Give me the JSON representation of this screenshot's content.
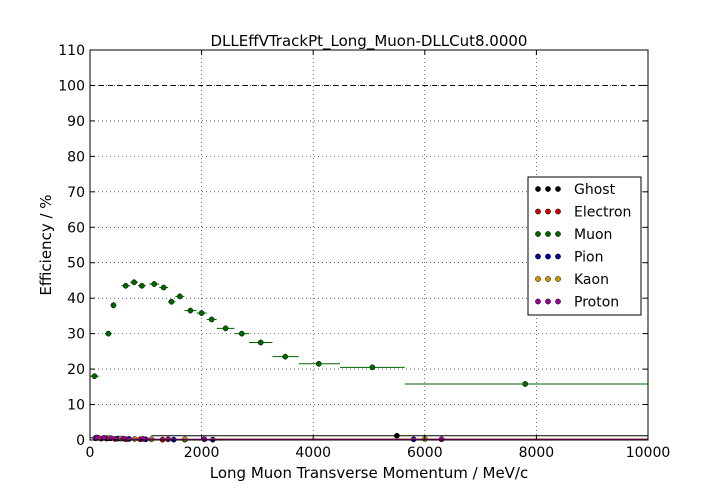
{
  "chart_data": {
    "type": "scatter",
    "title": "DLLEffVTrackPt_Long_Muon-DLLCut8.0000",
    "xlabel": "Long Muon Transverse Momentum / MeV/c",
    "ylabel": "Efficiency / %",
    "xlim": [
      0,
      10000
    ],
    "ylim": [
      0,
      110
    ],
    "xticks": [
      "0",
      "2000",
      "4000",
      "6000",
      "8000",
      "10000"
    ],
    "yticks": [
      "0",
      "10",
      "20",
      "30",
      "40",
      "50",
      "60",
      "70",
      "80",
      "90",
      "100",
      "110"
    ],
    "grid": true,
    "reference_line": 100,
    "legend_position": "right",
    "series": [
      {
        "name": "Ghost",
        "color": "#000000",
        "points": [
          {
            "x": 5500,
            "y": 1.2,
            "xlo": 1100,
            "xhi": 10000,
            "err": 0.3
          }
        ]
      },
      {
        "name": "Electron",
        "color": "#cc0000",
        "points": [
          {
            "x": 100,
            "y": 0.5,
            "xlo": 50,
            "xhi": 150,
            "err": 0.3
          },
          {
            "x": 200,
            "y": 0.4,
            "xlo": 150,
            "xhi": 250,
            "err": 0.3
          },
          {
            "x": 300,
            "y": 0.4,
            "xlo": 250,
            "xhi": 350,
            "err": 0.3
          },
          {
            "x": 450,
            "y": 0.3,
            "xlo": 350,
            "xhi": 550,
            "err": 0.3
          },
          {
            "x": 650,
            "y": 0.2,
            "xlo": 550,
            "xhi": 750,
            "err": 0.3
          },
          {
            "x": 900,
            "y": 0.2,
            "xlo": 750,
            "xhi": 1050,
            "err": 0.3
          },
          {
            "x": 1300,
            "y": 0.1,
            "xlo": 1050,
            "xhi": 1550,
            "err": 0.2
          },
          {
            "x": 1700,
            "y": 0.1,
            "xlo": 1550,
            "xhi": 1850,
            "err": 0.2
          }
        ]
      },
      {
        "name": "Muon",
        "color": "#006600",
        "points": [
          {
            "x": 80,
            "y": 18.0,
            "xlo": 0,
            "xhi": 160,
            "err": 0.7
          },
          {
            "x": 330,
            "y": 30.0,
            "xlo": 270,
            "xhi": 390,
            "err": 0.8
          },
          {
            "x": 420,
            "y": 38.0,
            "xlo": 390,
            "xhi": 470,
            "err": 0.9
          },
          {
            "x": 640,
            "y": 43.5,
            "xlo": 560,
            "xhi": 720,
            "err": 0.8
          },
          {
            "x": 790,
            "y": 44.5,
            "xlo": 720,
            "xhi": 860,
            "err": 0.8
          },
          {
            "x": 930,
            "y": 43.5,
            "xlo": 860,
            "xhi": 1000,
            "err": 0.8
          },
          {
            "x": 1150,
            "y": 44.0,
            "xlo": 1060,
            "xhi": 1240,
            "err": 0.8
          },
          {
            "x": 1320,
            "y": 43.0,
            "xlo": 1240,
            "xhi": 1400,
            "err": 0.8
          },
          {
            "x": 1460,
            "y": 39.0,
            "xlo": 1400,
            "xhi": 1530,
            "err": 0.8
          },
          {
            "x": 1610,
            "y": 40.5,
            "xlo": 1530,
            "xhi": 1690,
            "err": 0.8
          },
          {
            "x": 1800,
            "y": 36.5,
            "xlo": 1690,
            "xhi": 1910,
            "err": 0.8
          },
          {
            "x": 2000,
            "y": 35.8,
            "xlo": 1910,
            "xhi": 2090,
            "err": 0.8
          },
          {
            "x": 2180,
            "y": 34.0,
            "xlo": 2090,
            "xhi": 2270,
            "err": 0.8
          },
          {
            "x": 2430,
            "y": 31.5,
            "xlo": 2270,
            "xhi": 2590,
            "err": 0.8
          },
          {
            "x": 2720,
            "y": 30.0,
            "xlo": 2590,
            "xhi": 2850,
            "err": 0.8
          },
          {
            "x": 3060,
            "y": 27.5,
            "xlo": 2850,
            "xhi": 3270,
            "err": 0.8
          },
          {
            "x": 3500,
            "y": 23.5,
            "xlo": 3270,
            "xhi": 3740,
            "err": 0.8
          },
          {
            "x": 4100,
            "y": 21.5,
            "xlo": 3740,
            "xhi": 4480,
            "err": 0.8
          },
          {
            "x": 5060,
            "y": 20.5,
            "xlo": 4480,
            "xhi": 5640,
            "err": 0.8
          },
          {
            "x": 7800,
            "y": 15.8,
            "xlo": 5640,
            "xhi": 10000,
            "err": 0.8
          }
        ]
      },
      {
        "name": "Pion",
        "color": "#000099",
        "points": [
          {
            "x": 100,
            "y": 0.6,
            "xlo": 0,
            "xhi": 200,
            "err": 0.3
          },
          {
            "x": 300,
            "y": 0.5,
            "xlo": 200,
            "xhi": 400,
            "err": 0.3
          },
          {
            "x": 500,
            "y": 0.4,
            "xlo": 400,
            "xhi": 600,
            "err": 0.3
          },
          {
            "x": 700,
            "y": 0.3,
            "xlo": 600,
            "xhi": 800,
            "err": 0.3
          },
          {
            "x": 1000,
            "y": 0.2,
            "xlo": 800,
            "xhi": 1200,
            "err": 0.2
          },
          {
            "x": 1500,
            "y": 0.1,
            "xlo": 1200,
            "xhi": 1800,
            "err": 0.2
          },
          {
            "x": 2200,
            "y": 0.1,
            "xlo": 1800,
            "xhi": 2600,
            "err": 0.2
          },
          {
            "x": 5800,
            "y": 0.2,
            "xlo": 2600,
            "xhi": 10000,
            "err": 0.2
          }
        ]
      },
      {
        "name": "Kaon",
        "color": "#cc9900",
        "points": [
          {
            "x": 150,
            "y": 0.6,
            "xlo": 50,
            "xhi": 250,
            "err": 0.3
          },
          {
            "x": 350,
            "y": 0.5,
            "xlo": 250,
            "xhi": 450,
            "err": 0.3
          },
          {
            "x": 550,
            "y": 0.4,
            "xlo": 450,
            "xhi": 650,
            "err": 0.3
          },
          {
            "x": 800,
            "y": 0.3,
            "xlo": 650,
            "xhi": 950,
            "err": 0.3
          },
          {
            "x": 1100,
            "y": 0.2,
            "xlo": 950,
            "xhi": 1250,
            "err": 0.2
          },
          {
            "x": 1700,
            "y": 0.2,
            "xlo": 1250,
            "xhi": 2150,
            "err": 0.2
          },
          {
            "x": 6000,
            "y": 0.3,
            "xlo": 2150,
            "xhi": 10000,
            "err": 0.2
          }
        ]
      },
      {
        "name": "Proton",
        "color": "#990099",
        "points": [
          {
            "x": 120,
            "y": 0.7,
            "xlo": 40,
            "xhi": 200,
            "err": 0.3
          },
          {
            "x": 250,
            "y": 0.6,
            "xlo": 200,
            "xhi": 300,
            "err": 0.3
          },
          {
            "x": 380,
            "y": 0.5,
            "xlo": 300,
            "xhi": 460,
            "err": 0.3
          },
          {
            "x": 600,
            "y": 0.4,
            "xlo": 460,
            "xhi": 740,
            "err": 0.3
          },
          {
            "x": 950,
            "y": 0.3,
            "xlo": 740,
            "xhi": 1160,
            "err": 0.3
          },
          {
            "x": 1400,
            "y": 0.2,
            "xlo": 1160,
            "xhi": 1640,
            "err": 0.2
          },
          {
            "x": 2050,
            "y": 0.2,
            "xlo": 1640,
            "xhi": 2460,
            "err": 0.2
          },
          {
            "x": 6300,
            "y": 0.2,
            "xlo": 2460,
            "xhi": 10000,
            "err": 0.2
          }
        ]
      }
    ]
  }
}
